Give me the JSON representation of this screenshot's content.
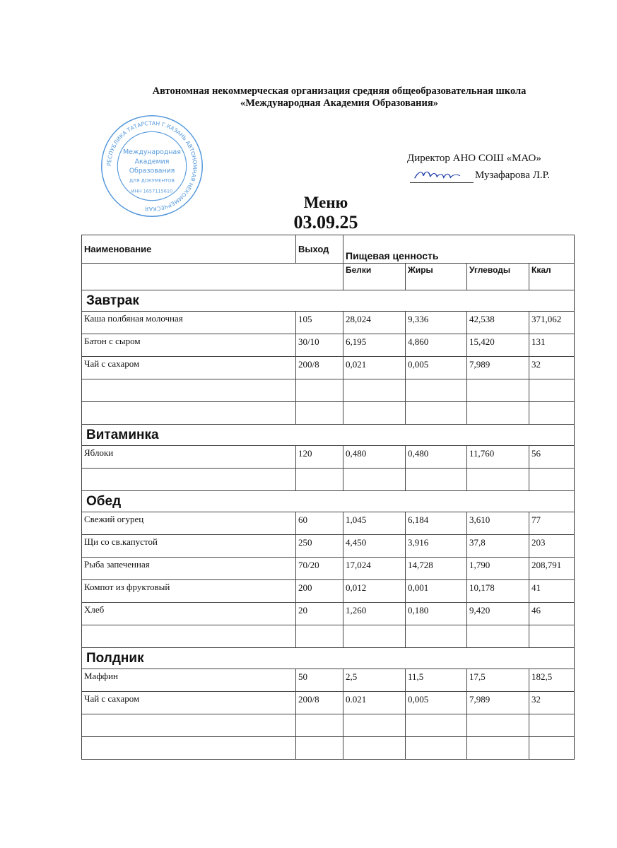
{
  "header": {
    "org_line1": "Автономная некоммерческая организация средняя общеобразовательная школа",
    "org_line2": "«Международная Академия Образования»",
    "director": "Директор АНО СОШ «МАО»",
    "signer": "Музафарова Л.Р.",
    "stamp_text": "РЕСПУБЛИКА ТАТАРСТАН Г. КАЗАНЬ АВТОНОМНАЯ НЕКОММЕРЧЕСКАЯ ОРГАНИЗАЦИЯ СРЕДНЯЯ ОБЩЕОБРАЗОВАТЕЛЬНАЯ ШКОЛА Международная Академия Образования ДЛЯ ДОКУМЕНТОВ ИНН 1657115610",
    "stamp_color": "#2a7fd4"
  },
  "title": "Меню",
  "date": "03.09.25",
  "table": {
    "col_name": "Наименование",
    "col_yield": "Выход",
    "col_nutrition": "Пищевая    ценность",
    "col_protein": "Белки",
    "col_fat": "Жиры",
    "col_carbs": "Углеводы",
    "col_kcal": "Ккал",
    "sections": [
      {
        "title": "Завтрак",
        "rows": [
          [
            "Каша полбяная молочная",
            "105",
            "28,024",
            "9,336",
            "42,538",
            "371,062"
          ],
          [
            "Батон   с  сыром",
            "30/10",
            "6,195",
            "4,860",
            "15,420",
            "131"
          ],
          [
            "Чай с сахаром",
            "200/8",
            "0,021",
            "0,005",
            "7,989",
            "32"
          ],
          [
            "",
            "",
            "",
            "",
            "",
            ""
          ],
          [
            "",
            "",
            "",
            "",
            "",
            ""
          ]
        ]
      },
      {
        "title": "Витаминка",
        "rows": [
          [
            "Яблоки",
            "120",
            "0,480",
            "0,480",
            "11,760",
            "56"
          ],
          [
            "",
            "",
            "",
            "",
            "",
            ""
          ]
        ]
      },
      {
        "title": "Обед",
        "rows": [
          [
            "Свежий    огурец",
            "60",
            "1,045",
            "6,184",
            "3,610",
            "77"
          ],
          [
            "Щи со св.капустой",
            "250",
            "4,450",
            "3,916",
            "37,8",
            "203"
          ],
          [
            "Рыба запеченная",
            "70/20",
            "17,024",
            "14,728",
            "1,790",
            "208,791"
          ],
          [
            "Компот из   фруктовый",
            "200",
            "0,012",
            "0,001",
            "10,178",
            "41"
          ],
          [
            "Хлеб",
            "20",
            "1,260",
            "0,180",
            "9,420",
            "46"
          ],
          [
            "",
            "",
            "",
            "",
            "",
            ""
          ]
        ]
      },
      {
        "title": "Полдник",
        "rows": [
          [
            "Маффин",
            "50",
            "2,5",
            "11,5",
            "17,5",
            "182,5"
          ],
          [
            "Чай с сахаром",
            "200/8",
            "0.021",
            "0,005",
            "7,989",
            "32"
          ],
          [
            "",
            "",
            "",
            "",
            "",
            ""
          ],
          [
            "",
            "",
            "",
            "",
            "",
            ""
          ]
        ]
      }
    ]
  }
}
